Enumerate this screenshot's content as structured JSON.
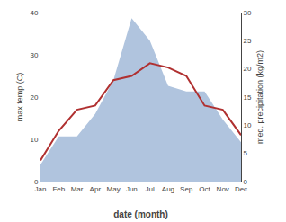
{
  "chart_data": {
    "type": "line",
    "xlabel": "date (month)",
    "ylabel": "max temp (C)",
    "y2label": "med. precipitation (kg/m2)",
    "categories": [
      "Jan",
      "Feb",
      "Mar",
      "Apr",
      "May",
      "Jun",
      "Jul",
      "Aug",
      "Sep",
      "Oct",
      "Nov",
      "Dec"
    ],
    "series": [
      {
        "type": "area",
        "axis": "y2",
        "color": "#b0c4de",
        "values": [
          3,
          8,
          8,
          12,
          18,
          29,
          25,
          17,
          16,
          16,
          11,
          7
        ]
      },
      {
        "type": "line",
        "color": "#b03030",
        "values": [
          5,
          12,
          17,
          18,
          24,
          25,
          28,
          27,
          25,
          18,
          17,
          11
        ]
      }
    ],
    "ylim": [
      0,
      40
    ],
    "yticks": [
      0,
      10,
      20,
      30,
      40
    ],
    "y2lim": [
      0,
      30
    ],
    "y2ticks": [
      0,
      5,
      10,
      15,
      20,
      25,
      30
    ],
    "grid": false
  }
}
